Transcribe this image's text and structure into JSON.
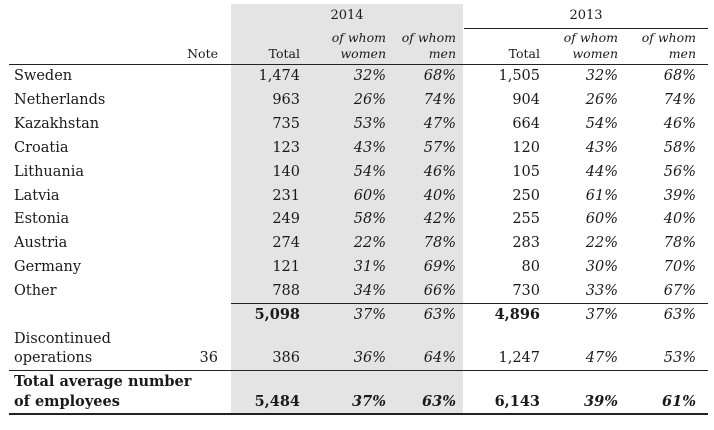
{
  "years": {
    "current": "2014",
    "previous": "2013"
  },
  "columns": {
    "note": "Note",
    "total": "Total",
    "women": [
      "of whom",
      "women"
    ],
    "men": [
      "of whom",
      "men"
    ]
  },
  "rows": [
    {
      "label": "Sweden",
      "t14": "1,474",
      "w14": "32%",
      "m14": "68%",
      "t13": "1,505",
      "w13": "32%",
      "m13": "68%"
    },
    {
      "label": "Netherlands",
      "t14": "963",
      "w14": "26%",
      "m14": "74%",
      "t13": "904",
      "w13": "26%",
      "m13": "74%"
    },
    {
      "label": "Kazakhstan",
      "t14": "735",
      "w14": "53%",
      "m14": "47%",
      "t13": "664",
      "w13": "54%",
      "m13": "46%"
    },
    {
      "label": "Croatia",
      "t14": "123",
      "w14": "43%",
      "m14": "57%",
      "t13": "120",
      "w13": "43%",
      "m13": "58%"
    },
    {
      "label": "Lithuania",
      "t14": "140",
      "w14": "54%",
      "m14": "46%",
      "t13": "105",
      "w13": "44%",
      "m13": "56%"
    },
    {
      "label": "Latvia",
      "t14": "231",
      "w14": "60%",
      "m14": "40%",
      "t13": "250",
      "w13": "61%",
      "m13": "39%"
    },
    {
      "label": "Estonia",
      "t14": "249",
      "w14": "58%",
      "m14": "42%",
      "t13": "255",
      "w13": "60%",
      "m13": "40%"
    },
    {
      "label": "Austria",
      "t14": "274",
      "w14": "22%",
      "m14": "78%",
      "t13": "283",
      "w13": "22%",
      "m13": "78%"
    },
    {
      "label": "Germany",
      "t14": "121",
      "w14": "31%",
      "m14": "69%",
      "t13": "80",
      "w13": "30%",
      "m13": "70%"
    },
    {
      "label": "Other",
      "t14": "788",
      "w14": "34%",
      "m14": "66%",
      "t13": "730",
      "w13": "33%",
      "m13": "67%"
    }
  ],
  "subtotal": {
    "t14": "5,098",
    "w14": "37%",
    "m14": "63%",
    "t13": "4,896",
    "w13": "37%",
    "m13": "63%"
  },
  "discontinued": {
    "label_lines": [
      "Discontinued",
      "operations"
    ],
    "note": "36",
    "t14": "386",
    "w14": "36%",
    "m14": "64%",
    "t13": "1,247",
    "w13": "47%",
    "m13": "53%"
  },
  "total": {
    "label_lines": [
      "Total average number",
      "of employees"
    ],
    "t14": "5,484",
    "w14": "37%",
    "m14": "63%",
    "t13": "6,143",
    "w13": "39%",
    "m13": "61%"
  }
}
